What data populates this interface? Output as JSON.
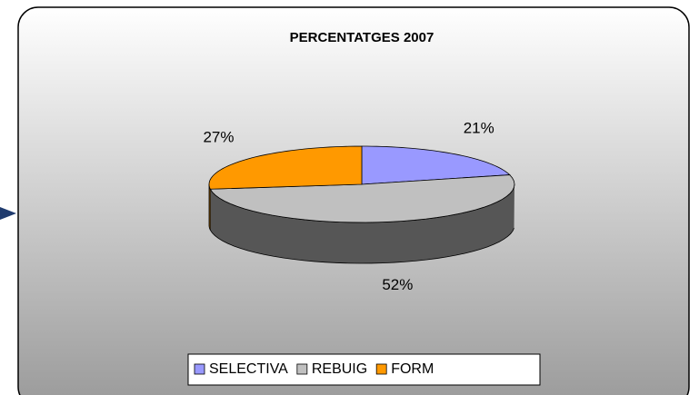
{
  "chart_data": {
    "type": "pie",
    "title": "PERCENTATGES 2007",
    "categories": [
      "SELECTIVA",
      "REBUIG",
      "FORM"
    ],
    "values": [
      21,
      52,
      27
    ],
    "value_labels": [
      "21%",
      "52%",
      "27%"
    ],
    "colors": [
      "#9999ff",
      "#c0c0c0",
      "#ff9900"
    ],
    "legend": "bottom"
  }
}
